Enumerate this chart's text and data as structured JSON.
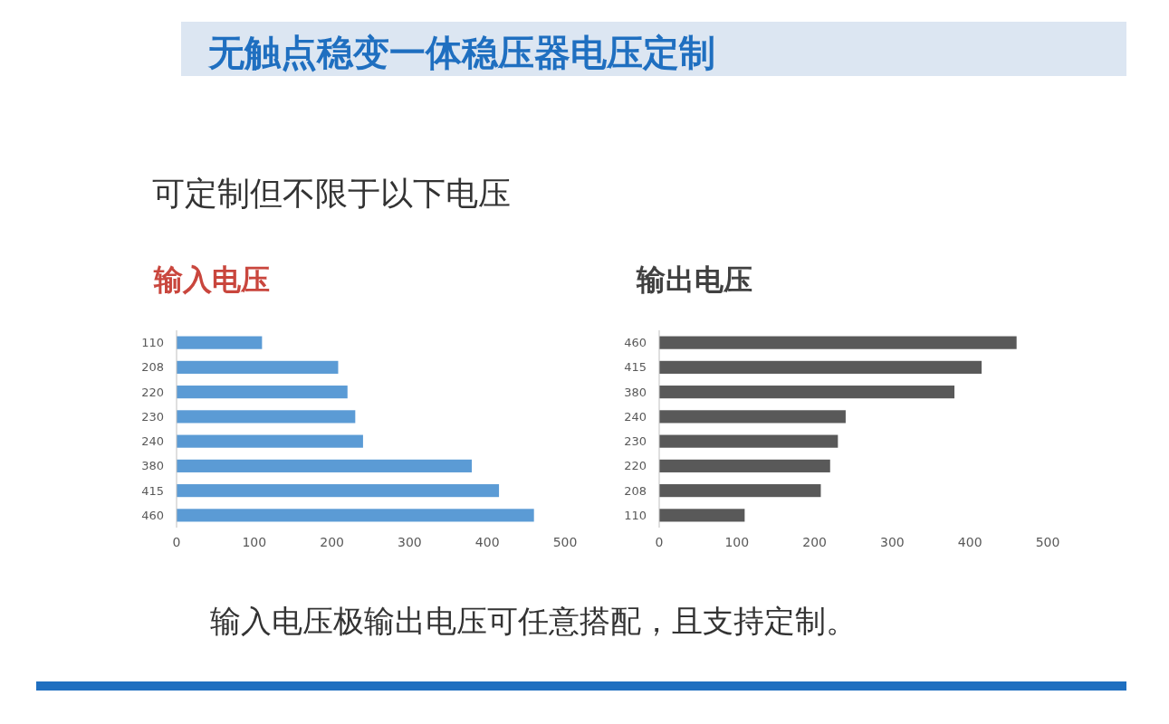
{
  "chart_data": [
    {
      "type": "other",
      "title": "无触点稳变一体稳压器电压定制",
      "subtitle": "可定制但不限于以下电压",
      "annotations": [
        "输入电压极输出电压可任意搭配，且支持定制。"
      ]
    },
    {
      "type": "bar",
      "orientation": "horizontal",
      "title": "输入电压",
      "categories": [
        "110",
        "208",
        "220",
        "230",
        "240",
        "380",
        "415",
        "460"
      ],
      "values": [
        110,
        208,
        220,
        230,
        240,
        380,
        415,
        460
      ],
      "color": "#5b9bd5",
      "xlim": [
        0,
        500
      ],
      "xticks": [
        0,
        100,
        200,
        300,
        400,
        500
      ],
      "grid": false
    },
    {
      "type": "bar",
      "orientation": "horizontal",
      "title": "输出电压",
      "categories": [
        "460",
        "415",
        "380",
        "240",
        "230",
        "220",
        "208",
        "110"
      ],
      "values": [
        460,
        415,
        380,
        240,
        230,
        220,
        208,
        110
      ],
      "color": "#595959",
      "xlim": [
        0,
        500
      ],
      "xticks": [
        0,
        100,
        200,
        300,
        400,
        500
      ],
      "grid": false
    }
  ]
}
